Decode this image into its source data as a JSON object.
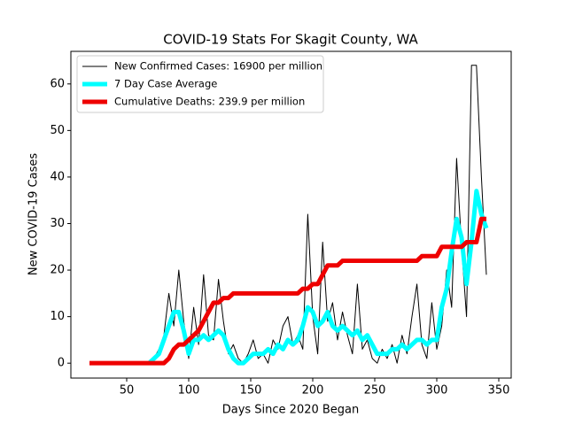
{
  "chart_data": {
    "type": "line",
    "title": "COVID-19 Stats For Skagit County, WA",
    "xlabel": "Days Since 2020 Began",
    "ylabel": "New COVID-19 Cases",
    "x": [
      20,
      24,
      28,
      32,
      36,
      40,
      44,
      48,
      52,
      56,
      60,
      64,
      68,
      72,
      76,
      80,
      84,
      88,
      92,
      96,
      100,
      104,
      108,
      112,
      116,
      120,
      124,
      128,
      132,
      136,
      140,
      144,
      148,
      152,
      156,
      160,
      164,
      168,
      172,
      176,
      180,
      184,
      188,
      192,
      196,
      200,
      204,
      208,
      212,
      216,
      220,
      224,
      228,
      232,
      236,
      240,
      244,
      248,
      252,
      256,
      260,
      264,
      268,
      272,
      276,
      280,
      284,
      288,
      292,
      296,
      300,
      304,
      308,
      312,
      316,
      320,
      324,
      328,
      332,
      336,
      340
    ],
    "series": [
      {
        "name": "New Confirmed Cases: 16900 per million",
        "color": "#000000",
        "linewidth": 1,
        "values": [
          0,
          0,
          0,
          0,
          0,
          0,
          0,
          0,
          0,
          0,
          0,
          0,
          0,
          1,
          3,
          6,
          15,
          8,
          20,
          9,
          1,
          12,
          4,
          19,
          6,
          5,
          18,
          9,
          2,
          4,
          1,
          0,
          2,
          5,
          1,
          2,
          0,
          5,
          3,
          8,
          10,
          4,
          6,
          3,
          32,
          10,
          2,
          26,
          9,
          13,
          5,
          11,
          6,
          2,
          17,
          3,
          5,
          1,
          0,
          3,
          1,
          4,
          0,
          6,
          2,
          10,
          17,
          4,
          1,
          13,
          3,
          8,
          20,
          12,
          44,
          25,
          10,
          64,
          64,
          40,
          19
        ]
      },
      {
        "name": "7 Day Case Average",
        "color": "#00ffff",
        "linewidth": 5,
        "values": [
          null,
          null,
          null,
          null,
          null,
          null,
          null,
          null,
          null,
          null,
          null,
          null,
          0,
          1,
          2,
          5,
          8,
          11,
          11,
          7,
          2,
          5,
          5,
          6,
          5,
          6,
          7,
          6,
          3,
          1,
          0,
          0,
          1,
          2,
          2,
          2,
          3,
          2,
          4,
          3,
          5,
          4,
          5,
          8,
          12,
          11,
          8,
          9,
          11,
          8,
          7,
          8,
          7,
          6,
          7,
          5,
          6,
          4,
          2,
          2,
          2,
          3,
          3,
          4,
          3,
          4,
          5,
          5,
          4,
          5,
          5,
          12,
          16,
          24,
          31,
          27,
          17,
          26,
          37,
          32,
          29
        ]
      },
      {
        "name": "Cumulative Deaths: 239.9 per million",
        "color": "#ee0000",
        "linewidth": 5,
        "values": [
          0,
          0,
          0,
          0,
          0,
          0,
          0,
          0,
          0,
          0,
          0,
          0,
          0,
          0,
          0,
          0,
          1,
          3,
          4,
          4,
          5,
          6,
          7,
          9,
          11,
          13,
          13,
          14,
          14,
          15,
          15,
          15,
          15,
          15,
          15,
          15,
          15,
          15,
          15,
          15,
          15,
          15,
          15,
          16,
          16,
          17,
          17,
          19,
          21,
          21,
          21,
          22,
          22,
          22,
          22,
          22,
          22,
          22,
          22,
          22,
          22,
          22,
          22,
          22,
          22,
          22,
          22,
          23,
          23,
          23,
          23,
          25,
          25,
          25,
          25,
          25,
          26,
          26,
          26,
          31,
          31
        ]
      }
    ],
    "xlim": [
      5,
      360
    ],
    "ylim": [
      -3.2,
      67
    ],
    "xticks": [
      50,
      100,
      150,
      200,
      250,
      300,
      350
    ],
    "yticks": [
      0,
      10,
      20,
      30,
      40,
      50,
      60
    ],
    "legend": "upper left"
  }
}
